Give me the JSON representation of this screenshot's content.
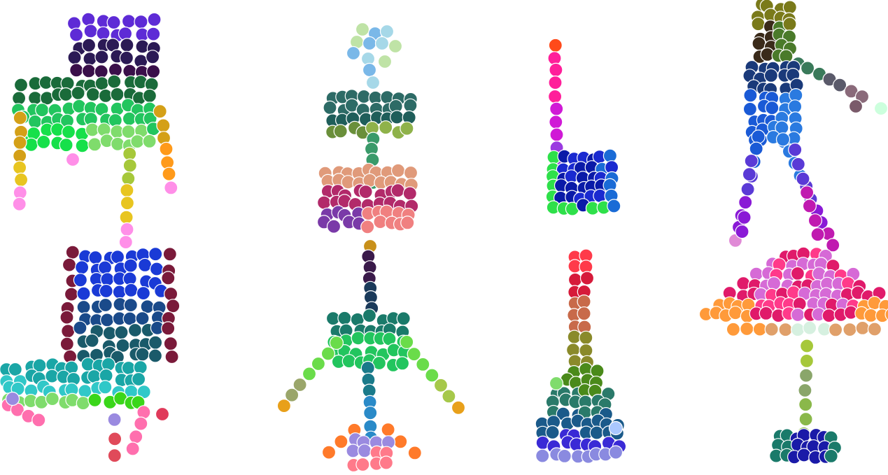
{
  "figure": {
    "shapes": [
      {
        "name": "chair",
        "palette": [
          "#5e2bd6",
          "#2b1a55",
          "#3a0f4a",
          "#1a6b3a",
          "#22c55e",
          "#16e04a",
          "#7fdc6c",
          "#d4a017",
          "#e8c520",
          "#ff8fe8"
        ]
      },
      {
        "name": "table-lamp-stack",
        "palette": [
          "#bfe3a6",
          "#7ab8e8",
          "#2d6b66",
          "#1f5e5a",
          "#6a8f3a",
          "#8fb24a",
          "#e09a7a",
          "#b22a6a",
          "#7a3aa8",
          "#f08080"
        ]
      },
      {
        "name": "l-bracket",
        "palette": [
          "#ff4a1a",
          "#ff1f9a",
          "#d01ad6",
          "#9a3ae0",
          "#1a2ad0",
          "#0a1aa8",
          "#1a6bd6",
          "#2ee04a"
        ]
      },
      {
        "name": "person",
        "palette": [
          "#7a7a1a",
          "#3a2a1a",
          "#4a7a2a",
          "#1a3a7a",
          "#1a5ad6",
          "#2a7ae0",
          "#5a3ad6",
          "#8a1ad6",
          "#c01ab0",
          "#e08ad6"
        ]
      },
      {
        "name": "armchair",
        "palette": [
          "#7a1a3a",
          "#1a3ad6",
          "#1a4a8a",
          "#1a5a6a",
          "#1aa6a6",
          "#30c8c8",
          "#7fdc6c",
          "#3ad61a",
          "#ff6fae",
          "#9a8ae0"
        ]
      },
      {
        "name": "airplane",
        "palette": [
          "#c8901a",
          "#3a1a4a",
          "#1a3a5a",
          "#1a7a6a",
          "#22c55e",
          "#6adc4a",
          "#2a8ac8",
          "#9a8ae0",
          "#ff7a2a",
          "#d6a06a"
        ]
      },
      {
        "name": "bottle",
        "palette": [
          "#ff3a4a",
          "#d61a3a",
          "#c86a4a",
          "#8a8a2a",
          "#4a8a1a",
          "#2a7a6a",
          "#1a5a8a",
          "#3a2ad6",
          "#8a8ae0",
          "#aac8ff"
        ]
      },
      {
        "name": "floor-lamp",
        "palette": [
          "#e01a6a",
          "#ff3a8a",
          "#d66ad6",
          "#e0a06a",
          "#ff9a3a",
          "#d6f0e0",
          "#a6c83a",
          "#8aa66a",
          "#1a1aa8",
          "#1a7a6a"
        ]
      }
    ]
  }
}
